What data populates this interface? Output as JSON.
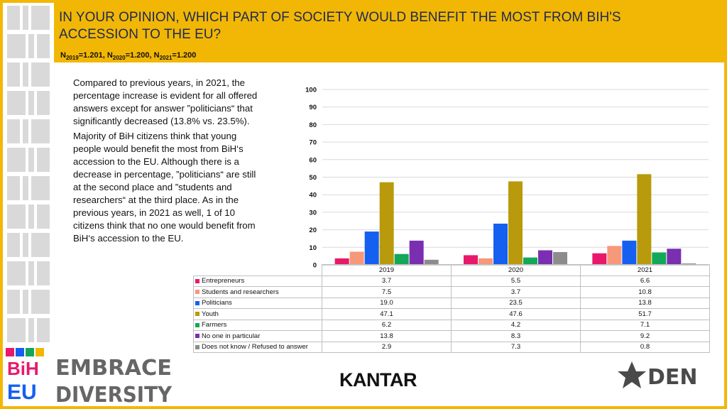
{
  "header": {
    "title": "IN YOUR OPINION, WHICH PART OF SOCIETY WOULD BENEFIT THE MOST FROM BIH'S ACCESSION TO THE EU?",
    "sample": {
      "n1_label": "N",
      "n1_sub": "2019",
      "n1_val": "=1.201, ",
      "n2_label": "N",
      "n2_sub": "2020",
      "n2_val": "=1.200, ",
      "n3_label": "N",
      "n3_sub": "2021",
      "n3_val": "=1.200"
    }
  },
  "body_text": {
    "para1": "Compared to previous years, in 2021, the percentage increase is evident for all offered answers except for answer ”politicians“ that significantly decreased (13.8% vs. 23.5%).",
    "para2": "Majority of BiH citizens think that young people would benefit the most from BiH‘s accession to the EU. Although there is a decrease in percentage, ”politicians“ are still at the second place and ”students and researchers“ at the third place. As in the previous years, in 2021 as well, 1 of 10 citizens think that no one would benefit from BiH‘s accession to the EU."
  },
  "chart_data": {
    "type": "bar",
    "categories": [
      "2019",
      "2020",
      "2021"
    ],
    "ylim": [
      0,
      100
    ],
    "yticks": [
      0,
      10,
      20,
      30,
      40,
      50,
      60,
      70,
      80,
      90,
      100
    ],
    "grid": true,
    "legend": "table-below",
    "series": [
      {
        "name": "Entrepreneurs",
        "color": "#e8196b",
        "values": [
          3.7,
          5.5,
          6.6
        ],
        "display": [
          "3.7",
          "5.5",
          "6.6"
        ]
      },
      {
        "name": "Students and researchers",
        "color": "#f7987a",
        "values": [
          7.5,
          3.7,
          10.8
        ],
        "display": [
          "7.5",
          "3.7",
          "10.8"
        ]
      },
      {
        "name": "Politicians",
        "color": "#1560f0",
        "values": [
          19.0,
          23.5,
          13.8
        ],
        "display": [
          "19.0",
          "23.5",
          "13.8"
        ]
      },
      {
        "name": "Youth",
        "color": "#b89a0c",
        "values": [
          47.1,
          47.6,
          51.7
        ],
        "display": [
          "47.1",
          "47.6",
          "51.7"
        ]
      },
      {
        "name": "Farmers",
        "color": "#13a859",
        "values": [
          6.2,
          4.2,
          7.1
        ],
        "display": [
          "6.2",
          "4.2",
          "7.1"
        ]
      },
      {
        "name": "No one in particular",
        "color": "#7a2fb0",
        "values": [
          13.8,
          8.3,
          9.2
        ],
        "display": [
          "13.8",
          "8.3",
          "9.2"
        ]
      },
      {
        "name": "Does not know / Refused to answer",
        "color": "#8c8c8c",
        "values": [
          2.9,
          7.3,
          0.8
        ],
        "display": [
          "2.9",
          "7.3",
          "0.8"
        ]
      }
    ]
  },
  "logos": {
    "embrace_line1": "EMBRACE",
    "embrace_line2": "DIVERSITY",
    "bih_top": "BiH",
    "bih_bottom": "EU",
    "kantar": "KANTAR",
    "den": "DEN"
  },
  "colors": {
    "frame": "#f2b705",
    "title": "#1f2a52"
  }
}
